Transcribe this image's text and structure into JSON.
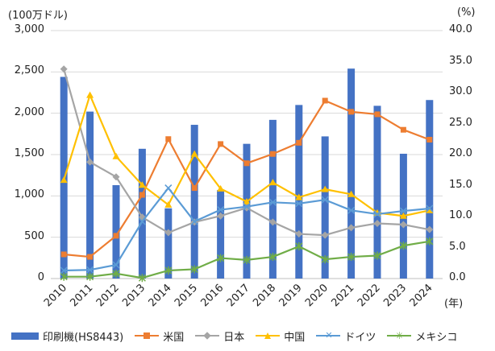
{
  "chart_data": {
    "type": "bar+line",
    "left_axis_label": "(100万ドル)",
    "right_axis_label": "(%)",
    "x_axis_unit": "(年)",
    "categories": [
      "2010",
      "2011",
      "2012",
      "2013",
      "2014",
      "2015",
      "2016",
      "2017",
      "2018",
      "2019",
      "2020",
      "2021",
      "2022",
      "2023",
      "2024"
    ],
    "left_ticks": [
      "0",
      "500",
      "1,000",
      "1,500",
      "2,000",
      "2,500",
      "3,000"
    ],
    "right_ticks": [
      "0.0",
      "5.0",
      "10.0",
      "15.0",
      "20.0",
      "25.0",
      "30.0",
      "35.0",
      "40.0"
    ],
    "ylim_left": [
      0,
      3000
    ],
    "ylim_right": [
      0,
      40
    ],
    "bar_series": {
      "name": "印刷機(HS8443)",
      "color": "#4472C4",
      "values": [
        2440,
        2020,
        1130,
        1570,
        850,
        1860,
        1070,
        1630,
        1920,
        2100,
        1720,
        2540,
        2090,
        1510,
        2160
      ]
    },
    "line_series": [
      {
        "name": "米国",
        "color": "#ED7D31",
        "marker": "square",
        "values": [
          3.9,
          3.5,
          6.9,
          13.5,
          22.5,
          14.6,
          21.7,
          18.6,
          20.1,
          21.9,
          28.7,
          26.9,
          26.5,
          24.0,
          22.4
        ]
      },
      {
        "name": "日本",
        "color": "#A5A5A5",
        "marker": "diamond",
        "values": [
          33.8,
          18.8,
          16.4,
          9.9,
          7.4,
          9.1,
          10.1,
          11.4,
          9.1,
          7.2,
          7.0,
          8.2,
          8.9,
          8.7,
          7.9
        ]
      },
      {
        "name": "中国",
        "color": "#FFC000",
        "marker": "triangle",
        "values": [
          15.9,
          29.6,
          19.7,
          15.1,
          11.9,
          20.1,
          14.5,
          12.4,
          15.5,
          13.1,
          14.4,
          13.6,
          10.6,
          10.1,
          11.0
        ]
      },
      {
        "name": "ドイツ",
        "color": "#5B9BD5",
        "marker": "x",
        "values": [
          1.3,
          1.4,
          2.2,
          9.2,
          14.6,
          9.2,
          11.1,
          11.6,
          12.3,
          12.1,
          12.7,
          11.0,
          10.4,
          10.9,
          11.3
        ]
      },
      {
        "name": "メキシコ",
        "color": "#70AD47",
        "marker": "star",
        "values": [
          0.3,
          0.3,
          0.8,
          0.1,
          1.3,
          1.5,
          3.3,
          3.0,
          3.5,
          5.2,
          3.1,
          3.5,
          3.7,
          5.3,
          6.0
        ]
      }
    ]
  }
}
